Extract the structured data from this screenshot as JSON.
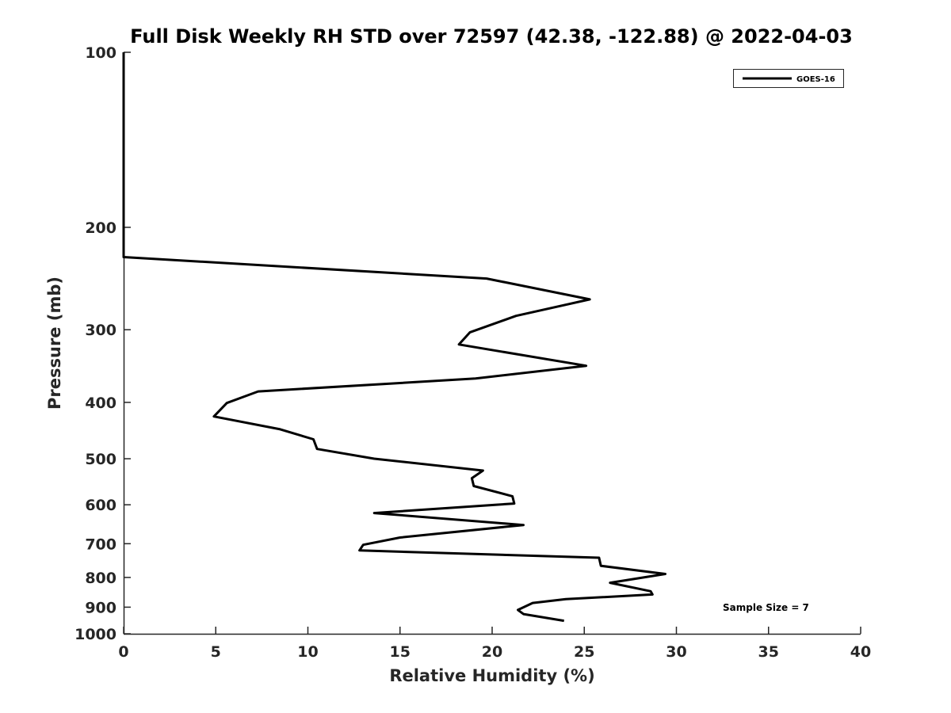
{
  "chart_data": {
    "type": "line",
    "title": "Full Disk Weekly RH STD over 72597 (42.38, -122.88) @ 2022-04-03",
    "xlabel": "Relative Humidity (%)",
    "ylabel": "Pressure (mb)",
    "xlim": [
      0,
      40
    ],
    "ylim": [
      100,
      1000
    ],
    "yscale": "log",
    "y_reversed": true,
    "xticks": [
      0,
      5,
      10,
      15,
      20,
      25,
      30,
      35,
      40
    ],
    "yticks": [
      100,
      200,
      300,
      400,
      500,
      600,
      700,
      800,
      900,
      1000
    ],
    "grid": false,
    "legend_position": "top-right",
    "annotation": "Sample Size = 7",
    "series": [
      {
        "name": "GOES-16",
        "color": "#000000",
        "points": [
          [
            0.0,
            100
          ],
          [
            0.0,
            150
          ],
          [
            0.0,
            200
          ],
          [
            0.0,
            225
          ],
          [
            19.7,
            245
          ],
          [
            25.3,
            266
          ],
          [
            21.3,
            284
          ],
          [
            18.8,
            303
          ],
          [
            18.2,
            318
          ],
          [
            25.1,
            346
          ],
          [
            19.1,
            364
          ],
          [
            7.3,
            383
          ],
          [
            5.6,
            401
          ],
          [
            4.9,
            423
          ],
          [
            8.5,
            445
          ],
          [
            10.3,
            463
          ],
          [
            10.5,
            481
          ],
          [
            13.6,
            500
          ],
          [
            19.5,
            524
          ],
          [
            18.9,
            540
          ],
          [
            19.0,
            557
          ],
          [
            21.1,
            580
          ],
          [
            21.2,
            597
          ],
          [
            13.6,
            620
          ],
          [
            21.7,
            650
          ],
          [
            15.0,
            683
          ],
          [
            13.0,
            703
          ],
          [
            12.8,
            719
          ],
          [
            25.8,
            740
          ],
          [
            25.9,
            764
          ],
          [
            29.4,
            789
          ],
          [
            26.4,
            817
          ],
          [
            28.6,
            845
          ],
          [
            28.7,
            856
          ],
          [
            24.0,
            872
          ],
          [
            22.2,
            885
          ],
          [
            21.4,
            910
          ],
          [
            21.7,
            925
          ],
          [
            23.9,
            950
          ]
        ]
      }
    ]
  }
}
